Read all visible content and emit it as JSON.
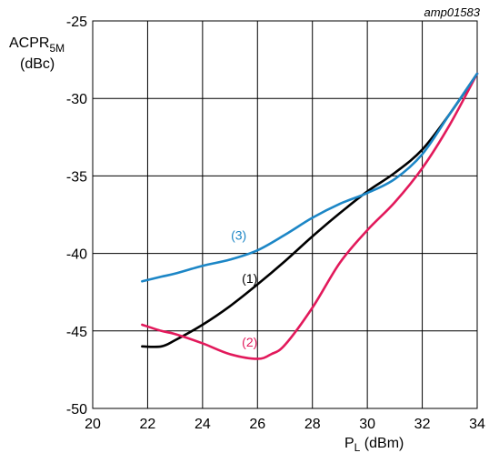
{
  "figure_id": "amp01583",
  "chart_data": {
    "type": "line",
    "ylabel_main": "ACPR",
    "ylabel_sub": "5M",
    "ylabel_unit": "(dBc)",
    "xlabel_main": "P",
    "xlabel_sub": "L",
    "xlabel_unit": " (dBm)",
    "xlim": [
      20,
      34
    ],
    "ylim": [
      -50,
      -25
    ],
    "xticks": [
      "20",
      "22",
      "24",
      "26",
      "28",
      "30",
      "32",
      "34"
    ],
    "yticks": [
      "-25",
      "-30",
      "-35",
      "-40",
      "-45",
      "-50"
    ],
    "grid": true,
    "series": [
      {
        "name": "(1)",
        "color": "#000000",
        "points": [
          [
            21.8,
            -46.0
          ],
          [
            22.5,
            -46.0
          ],
          [
            23.0,
            -45.6
          ],
          [
            24.0,
            -44.6
          ],
          [
            25.0,
            -43.4
          ],
          [
            26.0,
            -42.0
          ],
          [
            27.0,
            -40.5
          ],
          [
            28.0,
            -38.9
          ],
          [
            29.0,
            -37.4
          ],
          [
            30.0,
            -36.0
          ],
          [
            31.0,
            -34.8
          ],
          [
            32.0,
            -33.3
          ],
          [
            33.0,
            -31.0
          ],
          [
            34.0,
            -28.4
          ]
        ],
        "label_at": [
          26.0,
          -41.9
        ]
      },
      {
        "name": "(2)",
        "color": "#e2195b",
        "points": [
          [
            21.8,
            -44.6
          ],
          [
            22.5,
            -45.0
          ],
          [
            23.0,
            -45.2
          ],
          [
            24.0,
            -45.8
          ],
          [
            25.0,
            -46.5
          ],
          [
            26.0,
            -46.8
          ],
          [
            26.5,
            -46.5
          ],
          [
            27.0,
            -45.9
          ],
          [
            28.0,
            -43.5
          ],
          [
            29.0,
            -40.6
          ],
          [
            30.0,
            -38.5
          ],
          [
            31.0,
            -36.7
          ],
          [
            32.0,
            -34.5
          ],
          [
            33.0,
            -31.7
          ],
          [
            34.0,
            -28.4
          ]
        ],
        "label_at": [
          26.0,
          -46.0
        ]
      },
      {
        "name": "(3)",
        "color": "#1c86c6",
        "points": [
          [
            21.8,
            -41.8
          ],
          [
            22.5,
            -41.5
          ],
          [
            23.0,
            -41.3
          ],
          [
            24.0,
            -40.8
          ],
          [
            25.0,
            -40.4
          ],
          [
            26.0,
            -39.8
          ],
          [
            27.0,
            -38.8
          ],
          [
            28.0,
            -37.7
          ],
          [
            29.0,
            -36.8
          ],
          [
            30.0,
            -36.1
          ],
          [
            31.0,
            -35.2
          ],
          [
            32.0,
            -33.6
          ],
          [
            33.0,
            -31.0
          ],
          [
            34.0,
            -28.4
          ]
        ],
        "label_at": [
          25.6,
          -39.1
        ]
      }
    ]
  }
}
